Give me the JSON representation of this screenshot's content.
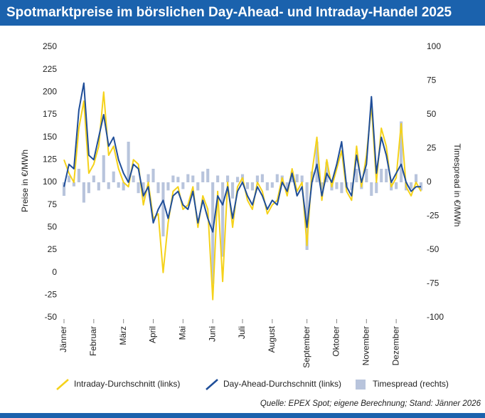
{
  "chart_data": {
    "type": "line",
    "title": "Spotmarktpreise im börslichen Day-Ahead- und Intraday-Handel 2025",
    "ylabel": "Preise in €/MWh",
    "y2label": "Timespread in €/MWh",
    "source": "Quelle: EPEX Spot; eigene Berechnung; Stand: Jänner 2026",
    "categories": [
      "Jänner",
      null,
      null,
      null,
      null,
      null,
      "Februar",
      null,
      null,
      null,
      null,
      null,
      "März",
      null,
      null,
      null,
      null,
      null,
      "April",
      null,
      null,
      null,
      null,
      null,
      "Mai",
      null,
      null,
      null,
      null,
      null,
      "Juni",
      null,
      null,
      null,
      null,
      null,
      "Juli",
      null,
      null,
      null,
      null,
      null,
      "August",
      null,
      null,
      null,
      null,
      null,
      null,
      "September",
      null,
      null,
      null,
      null,
      null,
      "Oktober",
      null,
      null,
      null,
      null,
      null,
      "November",
      null,
      null,
      null,
      null,
      null,
      "Dezember",
      null,
      null,
      null,
      null,
      null
    ],
    "ylim": [
      -50,
      250
    ],
    "yticks": [
      -50,
      -25,
      0,
      25,
      50,
      75,
      100,
      125,
      150,
      175,
      200,
      225,
      250
    ],
    "y2lim": [
      -100,
      100
    ],
    "y2ticks": [
      -100,
      -75,
      -50,
      -25,
      0,
      25,
      50,
      75,
      100
    ],
    "series": [
      {
        "name": "Timespread (rechts)",
        "type": "bar",
        "axis": "y2",
        "color": "#b8c4dc",
        "values": [
          -10,
          5,
          -3,
          10,
          -15,
          -8,
          5,
          -6,
          20,
          -5,
          8,
          -4,
          -6,
          30,
          5,
          -8,
          -12,
          6,
          10,
          -8,
          -40,
          -6,
          5,
          4,
          -5,
          6,
          5,
          -6,
          8,
          10,
          -75,
          5,
          -55,
          5,
          -12,
          4,
          6,
          -5,
          -6,
          5,
          6,
          -6,
          -4,
          6,
          5,
          -6,
          8,
          6,
          5,
          -50,
          8,
          30,
          -6,
          15,
          -6,
          -5,
          -8,
          -4,
          -6,
          10,
          -5,
          10,
          -10,
          -8,
          10,
          10,
          -6,
          -5,
          45,
          -6,
          -5,
          6,
          -6
        ]
      },
      {
        "name": "Intraday-Durchschnitt (links)",
        "type": "line",
        "color": "#f5d21a",
        "values": [
          125,
          110,
          100,
          160,
          190,
          110,
          120,
          140,
          200,
          130,
          140,
          115,
          100,
          95,
          125,
          120,
          75,
          100,
          60,
          65,
          0,
          55,
          90,
          95,
          70,
          75,
          95,
          50,
          85,
          70,
          -30,
          90,
          -10,
          100,
          50,
          95,
          105,
          80,
          70,
          100,
          90,
          65,
          75,
          80,
          105,
          85,
          115,
          90,
          100,
          30,
          110,
          150,
          80,
          125,
          95,
          115,
          135,
          90,
          80,
          140,
          95,
          130,
          185,
          100,
          160,
          140,
          95,
          105,
          165,
          95,
          85,
          100,
          90
        ]
      },
      {
        "name": "Day-Ahead-Durchschnitt (links)",
        "type": "line",
        "color": "#1f4e99",
        "values": [
          95,
          120,
          115,
          180,
          210,
          130,
          125,
          150,
          175,
          140,
          150,
          125,
          110,
          100,
          120,
          115,
          85,
          95,
          55,
          70,
          80,
          60,
          85,
          90,
          75,
          70,
          90,
          55,
          80,
          60,
          45,
          85,
          75,
          95,
          60,
          90,
          100,
          85,
          75,
          95,
          85,
          70,
          80,
          75,
          100,
          90,
          110,
          85,
          95,
          50,
          100,
          120,
          85,
          110,
          100,
          120,
          145,
          95,
          85,
          130,
          100,
          120,
          195,
          110,
          150,
          130,
          100,
          110,
          120,
          100,
          90,
          95,
          95
        ]
      }
    ]
  }
}
